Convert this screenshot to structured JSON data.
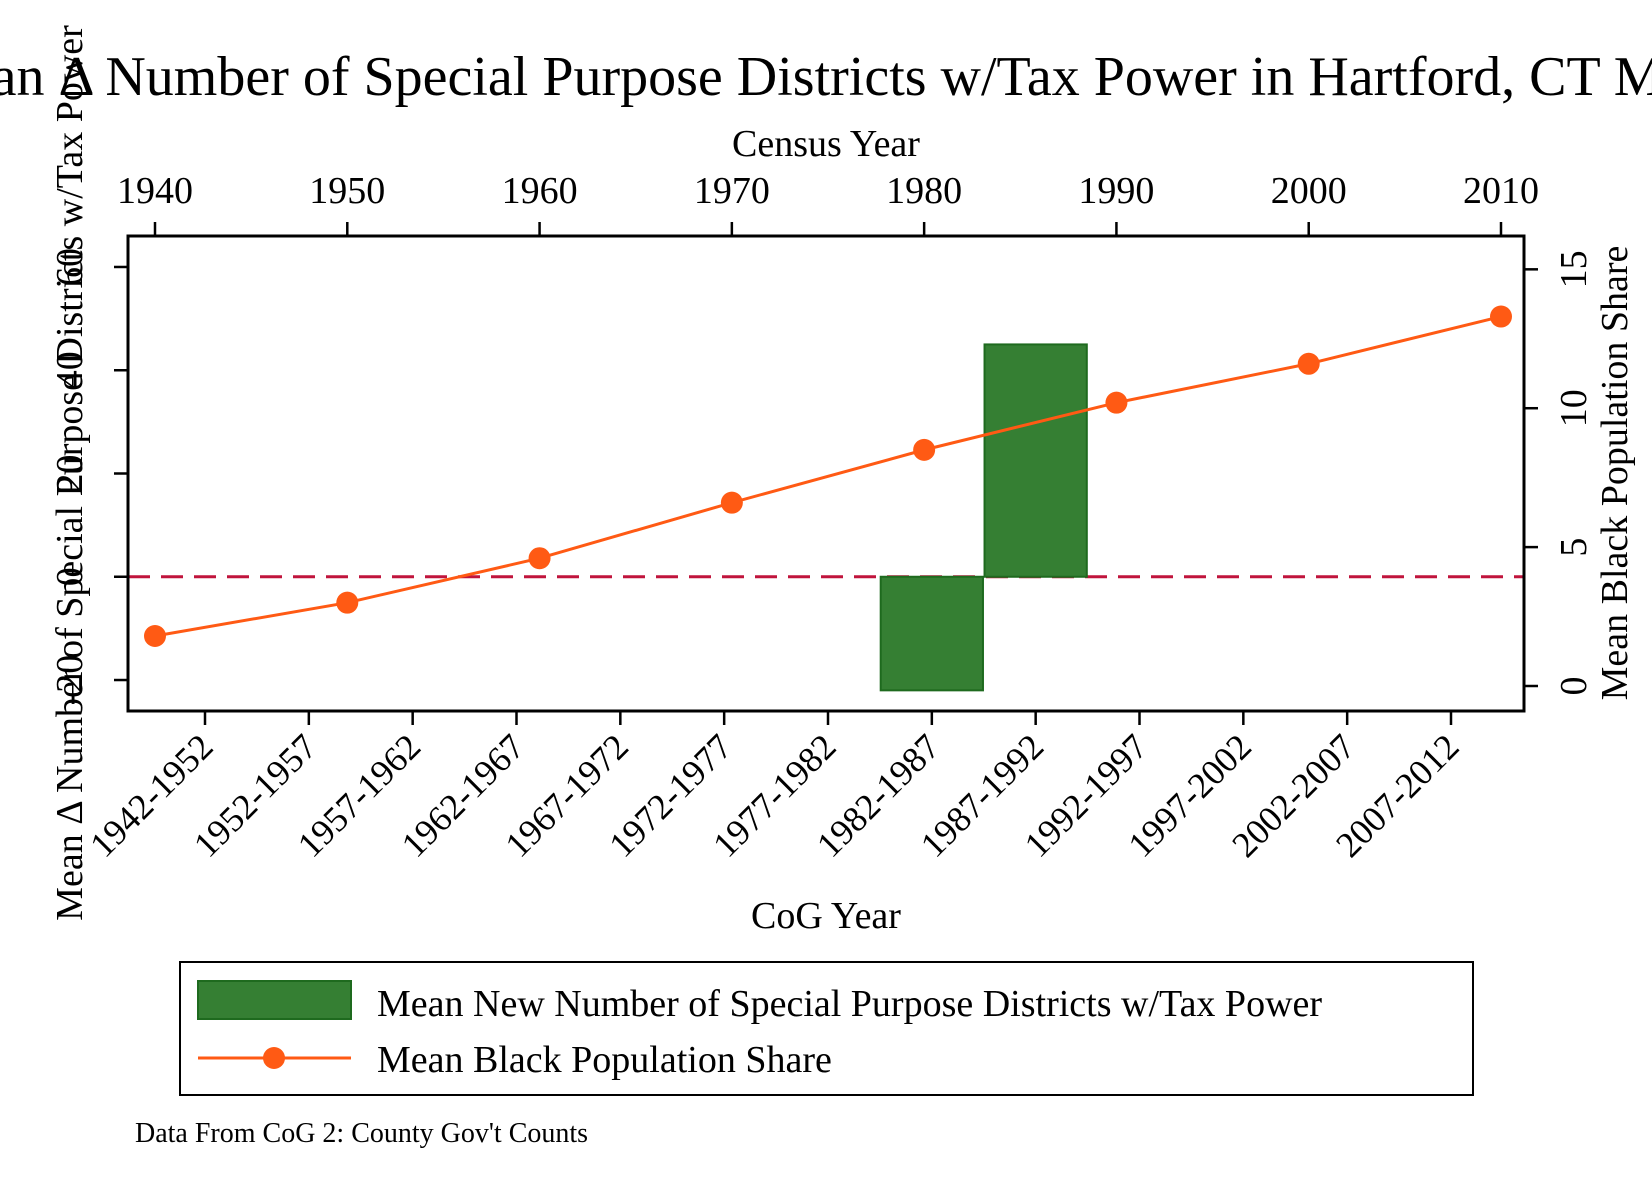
{
  "chart_data": {
    "type": "bar",
    "title": "Mean Δ Number of Special Purpose Districts w/Tax Power in Hartford, CT MSA",
    "top_axis": {
      "label": "Census Year",
      "ticks": [
        "1940",
        "1950",
        "1960",
        "1970",
        "1980",
        "1990",
        "2000",
        "2010"
      ]
    },
    "x_axis": {
      "label": "CoG Year",
      "categories": [
        "1942-1952",
        "1952-1957",
        "1957-1962",
        "1962-1967",
        "1967-1972",
        "1972-1977",
        "1977-1982",
        "1982-1987",
        "1987-1992",
        "1992-1997",
        "1997-2002",
        "2002-2007",
        "2007-2012"
      ]
    },
    "y_axis_left": {
      "label": "Mean Δ Number of Special Purpose Districts w/Tax Power",
      "ylim": [
        -26,
        66
      ],
      "ticks": [
        "-20",
        "0",
        "20",
        "40",
        "60"
      ]
    },
    "y_axis_right": {
      "label": "Mean Black Population Share",
      "ylim": [
        -0.9,
        16.2
      ],
      "ticks": [
        "0",
        "5",
        "10",
        "15"
      ]
    },
    "bars": {
      "name": "Mean New Number of Special Purpose Districts w/Tax Power",
      "color": "#357f33",
      "data": [
        {
          "category": "1982-1987",
          "value": -22
        },
        {
          "category": "1987-1992",
          "value": 45
        }
      ]
    },
    "line": {
      "name": "Mean Black Population Share",
      "color": "#ff5a14",
      "data": [
        {
          "x": 1940,
          "y": 1.8
        },
        {
          "x": 1950,
          "y": 3.0
        },
        {
          "x": 1960,
          "y": 4.6
        },
        {
          "x": 1970,
          "y": 6.6
        },
        {
          "x": 1980,
          "y": 8.5
        },
        {
          "x": 1990,
          "y": 10.2
        },
        {
          "x": 2000,
          "y": 11.6
        },
        {
          "x": 2010,
          "y": 13.3
        }
      ]
    },
    "reference_line": {
      "y": 0,
      "color": "#c0143c",
      "style": "dashed"
    },
    "grid": false,
    "legend_placement": "bottom",
    "note": "Data From CoG 2: County Gov't Counts"
  }
}
